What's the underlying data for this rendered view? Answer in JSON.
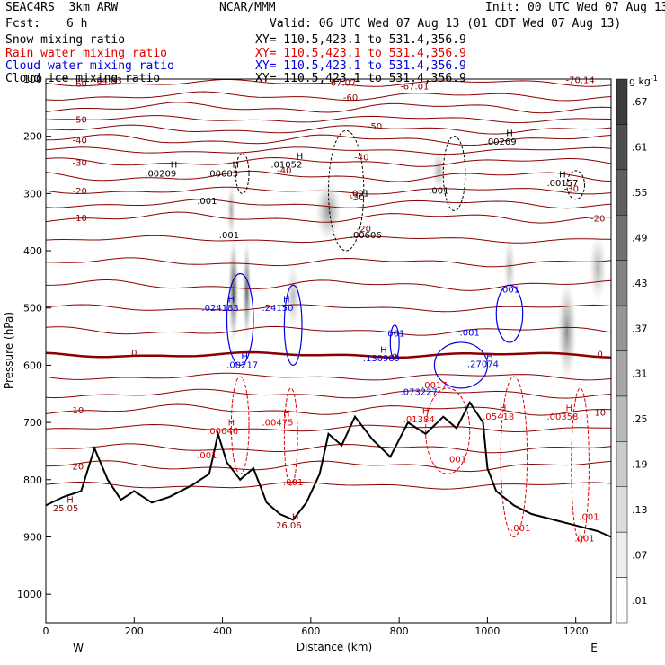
{
  "header": {
    "project": "SEAC4RS  3km ARW",
    "org": "NCAR/MMM",
    "init": "Init: 00 UTC Wed 07 Aug 13",
    "fcst_label": "Fcst:",
    "fcst_value": "6 h",
    "valid": "Valid: 06 UTC Wed 07 Aug 13 (01 CDT Wed 07 Aug 13)",
    "fields": [
      {
        "name": "Snow mixing ratio",
        "xy": "XY= 110.5,423.1 to 531.4,356.9",
        "color": "#000000"
      },
      {
        "name": "Rain water mixing ratio",
        "xy": "XY= 110.5,423.1 to 531.4,356.9",
        "color": "#e00000"
      },
      {
        "name": "Cloud water mixing ratio",
        "xy": "XY= 110.5,423.1 to 531.4,356.9",
        "color": "#0000e0"
      },
      {
        "name": "Cloud ice mixing ratio",
        "xy": "XY= 110.5,423.1 to 531.4,356.9",
        "color": "#000000"
      }
    ]
  },
  "chart_data": {
    "type": "cross-section",
    "xlabel": "Distance (km)",
    "ylabel": "Pressure (hPa)",
    "xlim": [
      0,
      1280
    ],
    "ylim": [
      100,
      1050
    ],
    "x_ticks": [
      0,
      200,
      400,
      600,
      800,
      1000,
      1200
    ],
    "y_ticks": [
      100,
      200,
      300,
      400,
      500,
      600,
      700,
      800,
      900,
      1000
    ],
    "x_end_labels": {
      "left": "W",
      "right": "E"
    },
    "colorbar": {
      "unit": "g kg",
      "unit_exp": "-1",
      "labels": [
        ".67",
        ".61",
        ".55",
        ".49",
        ".43",
        ".37",
        ".31",
        ".25",
        ".19",
        ".13",
        ".07",
        ".01"
      ]
    },
    "temperature_contours": [
      {
        "label": "-60",
        "p": 107
      },
      {
        "label": "-50",
        "p": 170
      },
      {
        "label": "-40",
        "p": 206
      },
      {
        "label": "-30",
        "p": 245
      },
      {
        "label": "-20",
        "p": 295
      },
      {
        "label": "-10",
        "p": 342
      },
      {
        "label": "10",
        "p": 678
      },
      {
        "label": "20",
        "p": 776
      }
    ],
    "zero_isotherm_p": 582,
    "labels": [
      {
        "text": "-64.83",
        "x": 140,
        "p": 108,
        "color": "#8b0000"
      },
      {
        "text": "-67.07",
        "x": 670,
        "p": 112,
        "color": "#8b0000"
      },
      {
        "text": "-67.01",
        "x": 835,
        "p": 118,
        "color": "#8b0000"
      },
      {
        "text": "-70.14",
        "x": 1210,
        "p": 107,
        "color": "#8b0000"
      },
      {
        "text": "-60",
        "x": 690,
        "p": 138,
        "color": "#8b0000"
      },
      {
        "text": "-50",
        "x": 745,
        "p": 188,
        "color": "#8b0000"
      },
      {
        "text": "-40",
        "x": 715,
        "p": 242,
        "color": "#8b0000"
      },
      {
        "text": "-40",
        "x": 540,
        "p": 265,
        "color": "#8b0000"
      },
      {
        "text": "-30",
        "x": 705,
        "p": 312,
        "color": "#8b0000"
      },
      {
        "text": "-30",
        "x": 1190,
        "p": 297,
        "color": "#8b0000"
      },
      {
        "text": "-20",
        "x": 720,
        "p": 367,
        "color": "#8b0000"
      },
      {
        "text": "-20",
        "x": 1250,
        "p": 349,
        "color": "#8b0000"
      },
      {
        "text": "0",
        "x": 200,
        "p": 584,
        "color": "#8b0000"
      },
      {
        "text": "0",
        "x": 790,
        "p": 591,
        "color": "#8b0000"
      },
      {
        "text": "0",
        "x": 1255,
        "p": 586,
        "color": "#8b0000"
      },
      {
        "text": "10",
        "x": 1255,
        "p": 688,
        "color": "#8b0000"
      },
      {
        "text": "H",
        "x": 290,
        "p": 255,
        "color": "#000000"
      },
      {
        "text": ".00209",
        "x": 260,
        "p": 270,
        "color": "#000000"
      },
      {
        "text": "H",
        "x": 430,
        "p": 255,
        "color": "#000000"
      },
      {
        "text": ".00683",
        "x": 400,
        "p": 270,
        "color": "#000000"
      },
      {
        "text": ".001",
        "x": 365,
        "p": 318,
        "color": "#000000"
      },
      {
        "text": ".001",
        "x": 415,
        "p": 378,
        "color": "#000000"
      },
      {
        "text": "H",
        "x": 575,
        "p": 240,
        "color": "#000000"
      },
      {
        "text": ".01052",
        "x": 545,
        "p": 255,
        "color": "#000000"
      },
      {
        "text": ".001",
        "x": 710,
        "p": 305,
        "color": "#000000"
      },
      {
        "text": ".00606",
        "x": 725,
        "p": 378,
        "color": "#000000"
      },
      {
        "text": ".001",
        "x": 890,
        "p": 300,
        "color": "#000000"
      },
      {
        "text": "H",
        "x": 1050,
        "p": 200,
        "color": "#000000"
      },
      {
        "text": ".00269",
        "x": 1030,
        "p": 215,
        "color": "#000000"
      },
      {
        "text": "H",
        "x": 1170,
        "p": 272,
        "color": "#000000"
      },
      {
        "text": ".00157",
        "x": 1170,
        "p": 287,
        "color": "#000000"
      },
      {
        "text": "H",
        "x": 420,
        "p": 490,
        "color": "#0000e0"
      },
      {
        "text": ".024183",
        "x": 395,
        "p": 505,
        "color": "#0000e0"
      },
      {
        "text": "H",
        "x": 545,
        "p": 490,
        "color": "#0000e0"
      },
      {
        "text": ".24150",
        "x": 525,
        "p": 505,
        "color": "#0000e0"
      },
      {
        "text": ".001",
        "x": 790,
        "p": 550,
        "color": "#0000e0"
      },
      {
        "text": "H",
        "x": 765,
        "p": 578,
        "color": "#0000e0"
      },
      {
        "text": ".130989",
        "x": 760,
        "p": 593,
        "color": "#0000e0"
      },
      {
        "text": "H",
        "x": 450,
        "p": 590,
        "color": "#0000e0"
      },
      {
        "text": ".00217",
        "x": 445,
        "p": 605,
        "color": "#0000e0"
      },
      {
        "text": ".001",
        "x": 960,
        "p": 548,
        "color": "#0000e0"
      },
      {
        "text": "H",
        "x": 1005,
        "p": 590,
        "color": "#0000e0"
      },
      {
        "text": ".27074",
        "x": 990,
        "p": 603,
        "color": "#0000e0"
      },
      {
        "text": ".001",
        "x": 1050,
        "p": 473,
        "color": "#0000e0"
      },
      {
        "text": ".073227",
        "x": 845,
        "p": 652,
        "color": "#0000e0"
      },
      {
        "text": ".0017",
        "x": 880,
        "p": 640,
        "color": "#e00000"
      },
      {
        "text": "H",
        "x": 860,
        "p": 685,
        "color": "#e00000"
      },
      {
        "text": ".01384",
        "x": 845,
        "p": 700,
        "color": "#e00000"
      },
      {
        "text": "H",
        "x": 420,
        "p": 705,
        "color": "#e00000"
      },
      {
        "text": ".00646",
        "x": 400,
        "p": 720,
        "color": "#e00000"
      },
      {
        "text": "H",
        "x": 545,
        "p": 690,
        "color": "#e00000"
      },
      {
        "text": ".00475",
        "x": 525,
        "p": 705,
        "color": "#e00000"
      },
      {
        "text": "H",
        "x": 1035,
        "p": 680,
        "color": "#e00000"
      },
      {
        "text": ".05418",
        "x": 1025,
        "p": 695,
        "color": "#e00000"
      },
      {
        "text": "H",
        "x": 1185,
        "p": 680,
        "color": "#e00000"
      },
      {
        "text": ".00358",
        "x": 1170,
        "p": 695,
        "color": "#e00000"
      },
      {
        "text": ".001",
        "x": 365,
        "p": 763,
        "color": "#e00000"
      },
      {
        "text": ".001",
        "x": 560,
        "p": 810,
        "color": "#e00000"
      },
      {
        "text": ".001",
        "x": 930,
        "p": 770,
        "color": "#e00000"
      },
      {
        "text": ".001",
        "x": 1075,
        "p": 890,
        "color": "#e00000"
      },
      {
        "text": ".001",
        "x": 1230,
        "p": 870,
        "color": "#e00000"
      },
      {
        "text": ".001",
        "x": 1220,
        "p": 908,
        "color": "#e00000"
      },
      {
        "text": "H",
        "x": 55,
        "p": 840,
        "color": "#8b0000"
      },
      {
        "text": "25.05",
        "x": 45,
        "p": 855,
        "color": "#8b0000"
      },
      {
        "text": "H",
        "x": 565,
        "p": 870,
        "color": "#8b0000"
      },
      {
        "text": "26.06",
        "x": 550,
        "p": 885,
        "color": "#8b0000"
      }
    ]
  }
}
